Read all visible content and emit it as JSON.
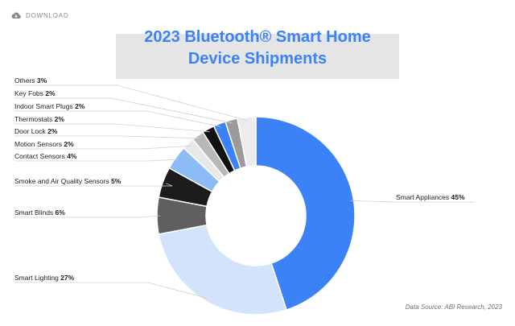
{
  "download_label": "DOWNLOAD",
  "title_line1": "2023 Bluetooth® Smart Home",
  "title_line2": "Device Shipments",
  "source": "Data Source: ABI Research, 2023",
  "colors": {
    "title": "#3b82f6",
    "header_band": "#e5e5e5"
  },
  "chart_data": {
    "type": "pie",
    "style": "donut",
    "title": "2023 Bluetooth® Smart Home Device Shipments",
    "slices": [
      {
        "name": "Smart Appliances",
        "value": 45,
        "label": "45%",
        "color": "#3b82f6"
      },
      {
        "name": "Smart Lighting",
        "value": 27,
        "label": "27%",
        "color": "#d2e3fb"
      },
      {
        "name": "Smart Blinds",
        "value": 6,
        "label": "6%",
        "color": "#5f5f5f"
      },
      {
        "name": "Smoke and Air Quality Sensors",
        "value": 5,
        "label": "5%",
        "color": "#1c1c1c"
      },
      {
        "name": "Contact Sensors",
        "value": 4,
        "label": "4%",
        "color": "#8bbcf6"
      },
      {
        "name": "Motion Sensors",
        "value": 2,
        "label": "2%",
        "color": "#e8e8e8"
      },
      {
        "name": "Door Lock",
        "value": 2,
        "label": "2%",
        "color": "#b8b8b8"
      },
      {
        "name": "Thermostats",
        "value": 2,
        "label": "2%",
        "color": "#111111"
      },
      {
        "name": "Indoor Smart Plugs",
        "value": 2,
        "label": "2%",
        "color": "#3b82f6"
      },
      {
        "name": "Key Fobs",
        "value": 2,
        "label": "2%",
        "color": "#9a9a9a"
      },
      {
        "name": "Others",
        "value": 3,
        "label": "3%",
        "color": "#ececec"
      }
    ]
  }
}
